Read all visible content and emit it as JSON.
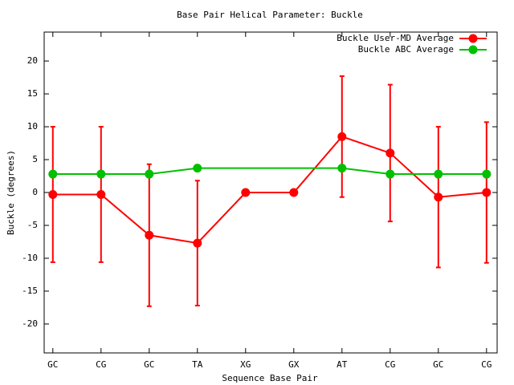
{
  "chart_data": {
    "type": "line",
    "title": "Base Pair Helical Parameter: Buckle",
    "xlabel": "Sequence Base Pair",
    "ylabel": "Buckle (degrees)",
    "xlim": [
      -0.18,
      9.22
    ],
    "xticks": [
      {
        "value": 0,
        "label": "GC"
      },
      {
        "value": 1,
        "label": "CG"
      },
      {
        "value": 2,
        "label": "GC"
      },
      {
        "value": 3,
        "label": "TA"
      },
      {
        "value": 4,
        "label": "XG"
      },
      {
        "value": 5,
        "label": "GX"
      },
      {
        "value": 6,
        "label": "AT"
      },
      {
        "value": 7,
        "label": "CG"
      },
      {
        "value": 8,
        "label": "GC"
      },
      {
        "value": 9,
        "label": "CG"
      }
    ],
    "ylim": [
      -24.4,
      24.4
    ],
    "yticks": [
      -20,
      -15,
      -10,
      -5,
      0,
      5,
      10,
      15,
      20
    ],
    "legend": "top-right",
    "series": [
      {
        "name": "Buckle User-MD Average",
        "color": "#ff0000",
        "x": [
          0,
          1,
          2,
          3,
          4,
          5,
          6,
          7,
          8,
          9
        ],
        "values": [
          -0.3,
          -0.3,
          -6.5,
          -7.7,
          0,
          0,
          8.5,
          6,
          -0.7,
          0
        ],
        "errors": [
          10.3,
          10.3,
          10.8,
          9.5,
          0,
          0,
          9.2,
          10.4,
          10.7,
          10.7
        ]
      },
      {
        "name": "Buckle ABC Average",
        "color": "#00c000",
        "x": [
          0,
          1,
          2,
          3,
          6,
          7,
          8,
          9
        ],
        "values": [
          2.8,
          2.8,
          2.8,
          3.7,
          3.7,
          2.8,
          2.8,
          2.8
        ]
      }
    ]
  }
}
